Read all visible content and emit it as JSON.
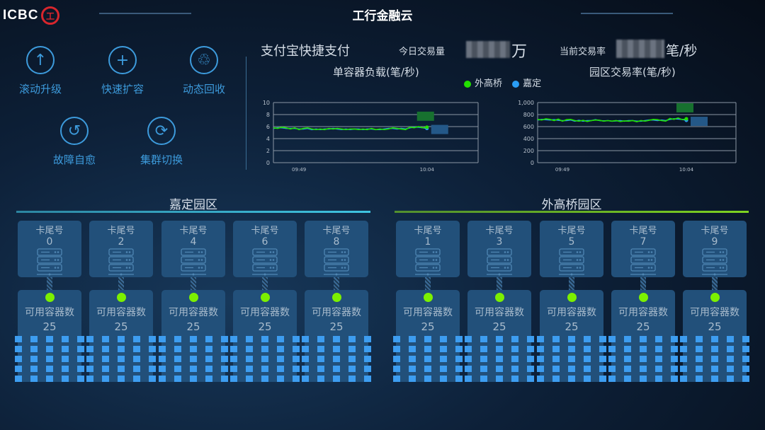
{
  "header": {
    "logo": "ICBC",
    "seal_text": "工",
    "title": "工行金融云"
  },
  "actions": [
    {
      "label": "滚动升级",
      "icon": "arrow-up-circle-icon",
      "glyph": "↑"
    },
    {
      "label": "快速扩容",
      "icon": "plus-circle-icon",
      "glyph": "+"
    },
    {
      "label": "动态回收",
      "icon": "recycle-icon",
      "glyph": "♲"
    },
    {
      "label": "故障自愈",
      "icon": "undo-circle-icon",
      "glyph": "↺"
    },
    {
      "label": "集群切换",
      "icon": "sync-icon",
      "glyph": "⟳"
    }
  ],
  "summary": {
    "app": "支付宝快捷支付",
    "today_label": "今日交易量",
    "today_unit": "万",
    "rate_label": "当前交易率",
    "rate_unit": "笔/秒"
  },
  "legend": [
    {
      "name": "外高桥",
      "color": "#22e000"
    },
    {
      "name": "嘉定",
      "color": "#2a9df4"
    }
  ],
  "chart_data": [
    {
      "type": "line",
      "title": "单容器负载(笔/秒)",
      "ylim": [
        0,
        10
      ],
      "yticks": [
        "0",
        "2",
        "4",
        "6",
        "8",
        "10"
      ],
      "xticks": [
        "09:49",
        "10:04"
      ],
      "xrange": [
        "09:46",
        "10:10"
      ],
      "grid": true,
      "x_start": "09:46",
      "x_step_seconds": 30,
      "series": [
        {
          "name": "外高桥",
          "values": [
            5.8,
            5.7,
            5.9,
            5.8,
            5.6,
            5.8,
            5.5,
            5.7,
            5.8,
            5.6,
            5.5,
            5.6,
            5.5,
            5.7,
            5.6,
            5.7,
            5.6,
            5.5,
            5.6,
            5.6,
            5.5,
            5.6,
            5.5,
            5.7,
            5.5,
            5.6,
            5.5,
            5.6,
            5.8,
            5.7,
            5.6,
            5.5,
            5.9,
            5.8,
            6.0,
            5.8,
            5.9
          ]
        },
        {
          "name": "嘉定",
          "values": [
            5.7,
            5.8,
            5.8,
            5.7,
            5.7,
            5.7,
            5.6,
            5.6,
            5.7,
            5.5,
            5.6,
            5.5,
            5.6,
            5.6,
            5.7,
            5.6,
            5.5,
            5.6,
            5.5,
            5.6,
            5.6,
            5.5,
            5.6,
            5.6,
            5.5,
            5.5,
            5.6,
            5.7,
            5.7,
            5.6,
            5.7,
            5.6,
            5.8,
            5.9,
            5.9,
            5.8,
            5.7
          ]
        }
      ]
    },
    {
      "type": "line",
      "title": "园区交易率(笔/秒)",
      "ylim": [
        0,
        1000
      ],
      "yticks": [
        "0",
        "200",
        "400",
        "600",
        "800",
        "1,000"
      ],
      "xticks": [
        "09:49",
        "10:04"
      ],
      "xrange": [
        "09:46",
        "10:10"
      ],
      "grid": true,
      "x_start": "09:46",
      "x_step_seconds": 30,
      "series": [
        {
          "name": "外高桥",
          "values": [
            720,
            710,
            730,
            720,
            700,
            725,
            690,
            715,
            720,
            700,
            690,
            705,
            685,
            700,
            710,
            705,
            690,
            700,
            690,
            700,
            685,
            695,
            690,
            700,
            680,
            700,
            690,
            705,
            720,
            715,
            700,
            690,
            735,
            720,
            745,
            715,
            730
          ]
        },
        {
          "name": "嘉定",
          "values": [
            710,
            720,
            715,
            710,
            715,
            705,
            700,
            700,
            710,
            690,
            705,
            690,
            700,
            700,
            715,
            700,
            695,
            700,
            690,
            695,
            700,
            690,
            700,
            700,
            690,
            690,
            700,
            710,
            710,
            700,
            710,
            700,
            720,
            730,
            725,
            720,
            705
          ]
        }
      ]
    }
  ],
  "parks": [
    {
      "name": "嘉定园区",
      "accent": "#3fc4e0",
      "cards": [
        {
          "tail": "0",
          "count": "25"
        },
        {
          "tail": "2",
          "count": "25"
        },
        {
          "tail": "4",
          "count": "25"
        },
        {
          "tail": "6",
          "count": "25"
        },
        {
          "tail": "8",
          "count": "25"
        }
      ]
    },
    {
      "name": "外高桥园区",
      "accent": "#7ed321",
      "cards": [
        {
          "tail": "1",
          "count": "25"
        },
        {
          "tail": "3",
          "count": "25"
        },
        {
          "tail": "5",
          "count": "25"
        },
        {
          "tail": "7",
          "count": "25"
        },
        {
          "tail": "9",
          "count": "25"
        }
      ]
    }
  ],
  "card_labels": {
    "tail": "卡尾号",
    "count": "可用容器数"
  }
}
